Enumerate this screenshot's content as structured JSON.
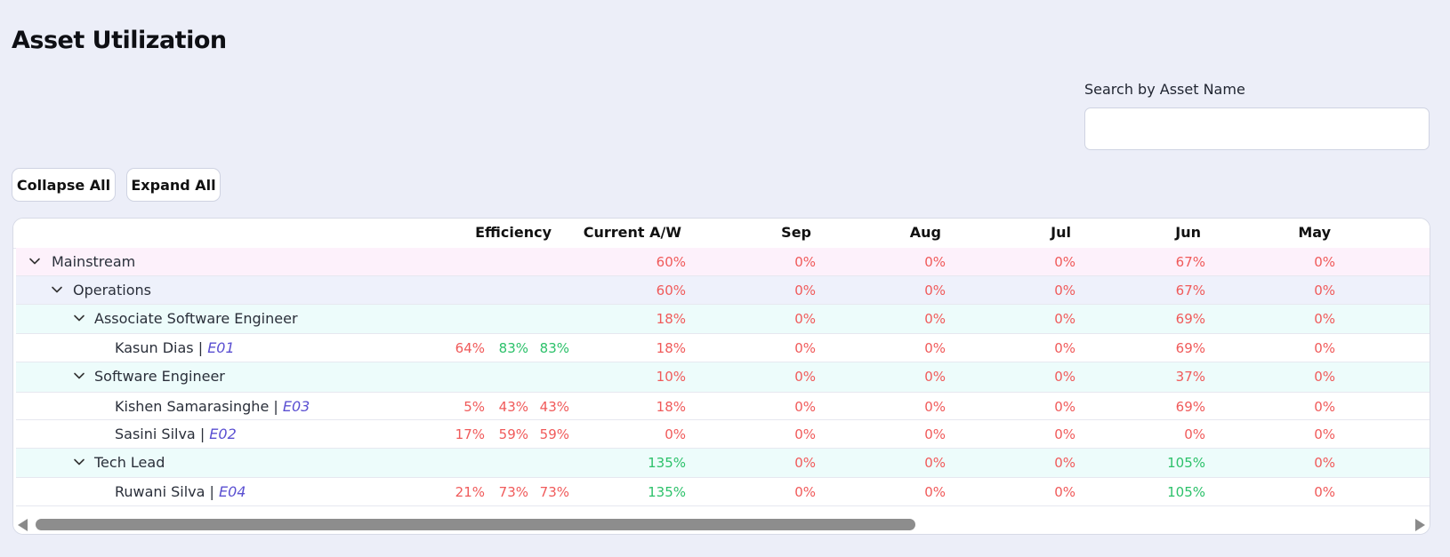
{
  "page": {
    "title": "Asset Utilization"
  },
  "search": {
    "label": "Search by Asset Name",
    "value": "",
    "placeholder": ""
  },
  "buttons": {
    "collapse": "Collapse All",
    "expand": "Expand All"
  },
  "table": {
    "headers": [
      "Efficiency",
      "Current A/W",
      "Sep",
      "Aug",
      "Jul",
      "Jun",
      "May"
    ],
    "rows": [
      {
        "level": 0,
        "name": "Mainstream",
        "code": "",
        "efficiency": [],
        "values": [
          "60%",
          "0%",
          "0%",
          "0%",
          "67%",
          "0%"
        ],
        "colors": [
          "red",
          "red",
          "red",
          "red",
          "red",
          "red"
        ]
      },
      {
        "level": 1,
        "name": "Operations",
        "code": "",
        "efficiency": [],
        "values": [
          "60%",
          "0%",
          "0%",
          "0%",
          "67%",
          "0%"
        ],
        "colors": [
          "red",
          "red",
          "red",
          "red",
          "red",
          "red"
        ]
      },
      {
        "level": 2,
        "name": "Associate Software Engineer",
        "code": "",
        "efficiency": [],
        "values": [
          "18%",
          "0%",
          "0%",
          "0%",
          "69%",
          "0%"
        ],
        "colors": [
          "red",
          "red",
          "red",
          "red",
          "red",
          "red"
        ]
      },
      {
        "level": 3,
        "name": "Kasun Dias",
        "code": "E01",
        "efficiency": [
          [
            "64%",
            "red"
          ],
          [
            "83%",
            "green"
          ],
          [
            "83%",
            "green"
          ]
        ],
        "values": [
          "18%",
          "0%",
          "0%",
          "0%",
          "69%",
          "0%"
        ],
        "colors": [
          "red",
          "red",
          "red",
          "red",
          "red",
          "red"
        ]
      },
      {
        "level": 2,
        "name": "Software Engineer",
        "code": "",
        "efficiency": [],
        "values": [
          "10%",
          "0%",
          "0%",
          "0%",
          "37%",
          "0%"
        ],
        "colors": [
          "red",
          "red",
          "red",
          "red",
          "red",
          "red"
        ]
      },
      {
        "level": 3,
        "name": "Kishen Samarasinghe",
        "code": "E03",
        "efficiency": [
          [
            "5%",
            "red"
          ],
          [
            "43%",
            "red"
          ],
          [
            "43%",
            "red"
          ]
        ],
        "values": [
          "18%",
          "0%",
          "0%",
          "0%",
          "69%",
          "0%"
        ],
        "colors": [
          "red",
          "red",
          "red",
          "red",
          "red",
          "red"
        ]
      },
      {
        "level": 3,
        "name": "Sasini Silva",
        "code": "E02",
        "efficiency": [
          [
            "17%",
            "red"
          ],
          [
            "59%",
            "red"
          ],
          [
            "59%",
            "red"
          ]
        ],
        "values": [
          "0%",
          "0%",
          "0%",
          "0%",
          "0%",
          "0%"
        ],
        "colors": [
          "red",
          "red",
          "red",
          "red",
          "red",
          "red"
        ]
      },
      {
        "level": 2,
        "name": "Tech Lead",
        "code": "",
        "efficiency": [],
        "values": [
          "135%",
          "0%",
          "0%",
          "0%",
          "105%",
          "0%"
        ],
        "colors": [
          "green",
          "red",
          "red",
          "red",
          "green",
          "red"
        ]
      },
      {
        "level": 3,
        "name": "Ruwani Silva",
        "code": "E04",
        "efficiency": [
          [
            "21%",
            "red"
          ],
          [
            "73%",
            "red"
          ],
          [
            "73%",
            "red"
          ]
        ],
        "values": [
          "135%",
          "0%",
          "0%",
          "0%",
          "105%",
          "0%"
        ],
        "colors": [
          "green",
          "red",
          "red",
          "red",
          "green",
          "red"
        ]
      }
    ]
  },
  "colors": {
    "positive": "#2cc16a",
    "negative": "#f05a5a",
    "code": "#5a4fd1"
  },
  "icons": {
    "expand": "chevron-down-icon",
    "scroll_left": "triangle-left-icon",
    "scroll_right": "triangle-right-icon"
  }
}
